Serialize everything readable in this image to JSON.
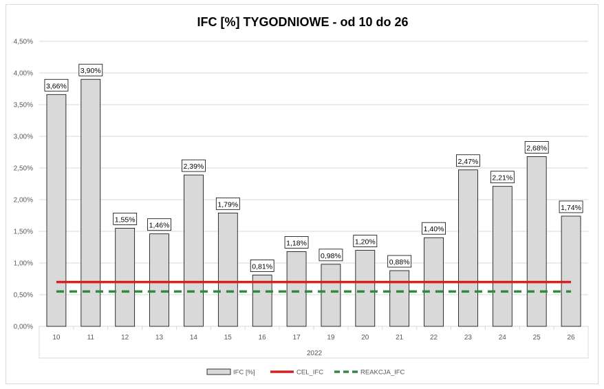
{
  "chart_data": {
    "type": "bar",
    "title": "IFC [%] TYGODNIOWE - od 10 do 26",
    "xlabel": "2022",
    "ylabel": "",
    "categories": [
      "10",
      "11",
      "12",
      "13",
      "14",
      "15",
      "16",
      "17",
      "19",
      "20",
      "21",
      "22",
      "23",
      "24",
      "25",
      "26"
    ],
    "series": [
      {
        "name": "IFC [%]",
        "kind": "bar",
        "color": "#d9d9d9",
        "values": [
          3.66,
          3.9,
          1.55,
          1.46,
          2.39,
          1.79,
          0.81,
          1.18,
          0.98,
          1.2,
          0.88,
          1.4,
          2.47,
          2.21,
          2.68,
          1.74
        ]
      },
      {
        "name": "CEL_IFC",
        "kind": "line",
        "color": "#d42020",
        "values": [
          0.7,
          0.7,
          0.7,
          0.7,
          0.7,
          0.7,
          0.7,
          0.7,
          0.7,
          0.7,
          0.7,
          0.7,
          0.7,
          0.7,
          0.7,
          0.7
        ]
      },
      {
        "name": "REAKCJA_IFC",
        "kind": "dashed-line",
        "color": "#2e8b3e",
        "values": [
          0.55,
          0.55,
          0.55,
          0.55,
          0.55,
          0.55,
          0.55,
          0.55,
          0.55,
          0.55,
          0.55,
          0.55,
          0.55,
          0.55,
          0.55,
          0.55
        ]
      }
    ],
    "data_labels": [
      "3,66%",
      "3,90%",
      "1,55%",
      "1,46%",
      "2,39%",
      "1,79%",
      "0,81%",
      "1,18%",
      "0,98%",
      "1,20%",
      "0,88%",
      "1,40%",
      "2,47%",
      "2,21%",
      "2,68%",
      "1,74%"
    ],
    "y_ticks": [
      0,
      0.5,
      1,
      1.5,
      2,
      2.5,
      3,
      3.5,
      4,
      4.5
    ],
    "y_tick_labels": [
      "0,00%",
      "0,50%",
      "1,00%",
      "1,50%",
      "2,00%",
      "2,50%",
      "3,00%",
      "3,50%",
      "4,00%",
      "4,50%"
    ],
    "ylim": [
      0,
      4.5
    ],
    "grid": true,
    "legend_position": "bottom"
  }
}
